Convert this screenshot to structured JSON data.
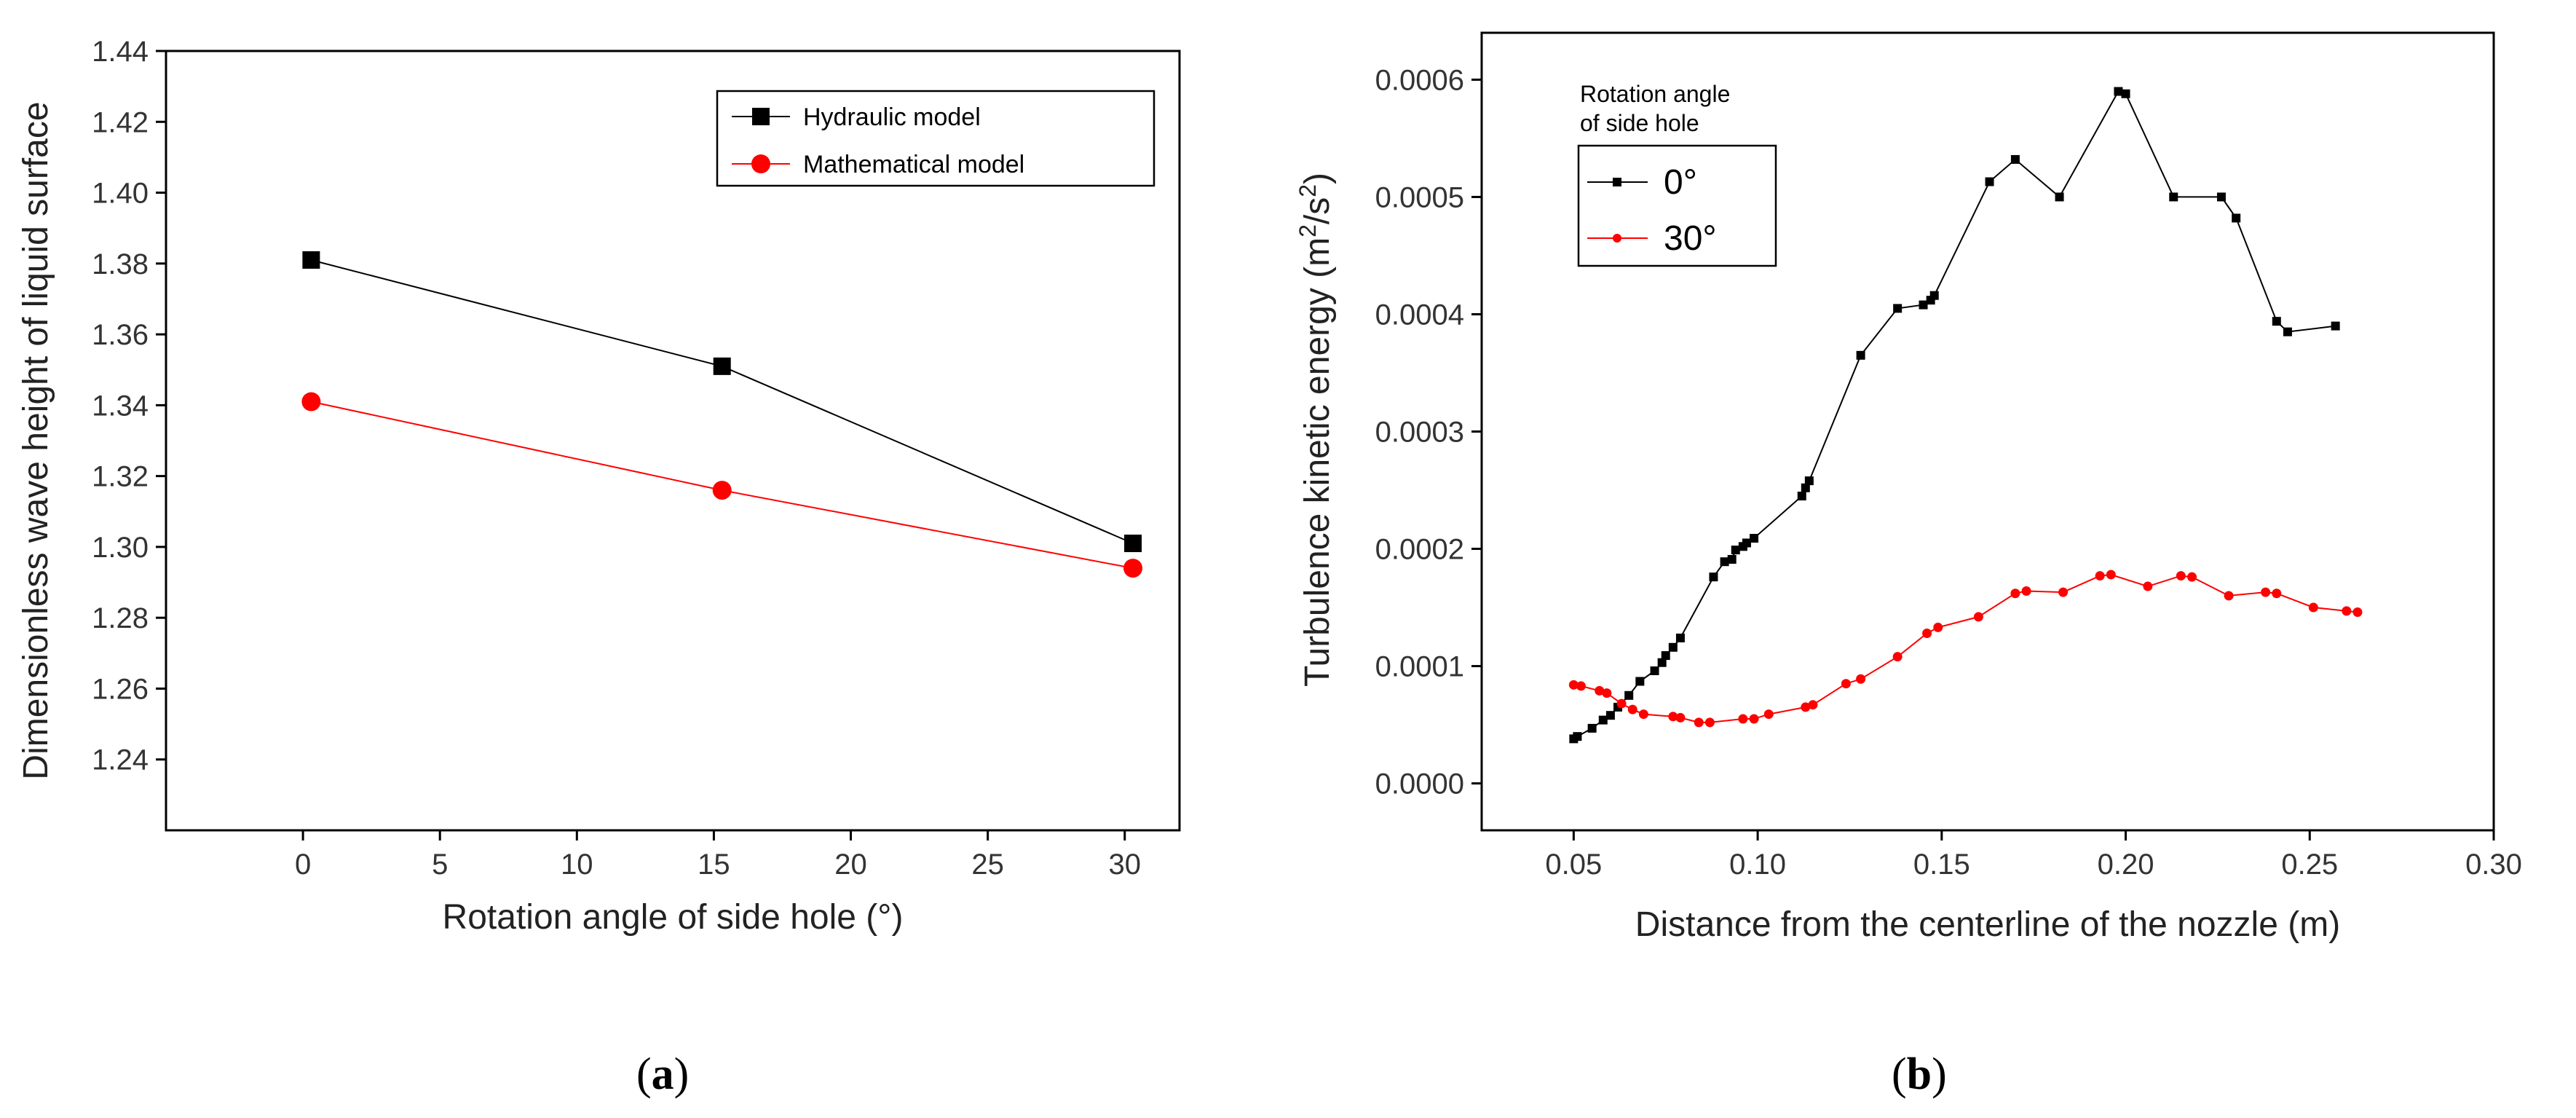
{
  "chart_data": [
    {
      "type": "line",
      "panel_label_open": "(",
      "panel_label_letter": "a",
      "panel_label_close": ")",
      "xlabel": "Rotation angle of side hole (°)",
      "ylabel": "Dimensionless wave height of liquid surface",
      "xlim": [
        -5,
        32
      ],
      "ylim": [
        1.22,
        1.44
      ],
      "xticks": [
        0,
        5,
        10,
        15,
        20,
        25,
        30
      ],
      "yticks": [
        1.24,
        1.26,
        1.28,
        1.3,
        1.32,
        1.34,
        1.36,
        1.38,
        1.4,
        1.42,
        1.44
      ],
      "xtick_labels": [
        "0",
        "5",
        "10",
        "15",
        "20",
        "25",
        "30"
      ],
      "ytick_labels": [
        "1.24",
        "1.26",
        "1.28",
        "1.30",
        "1.32",
        "1.34",
        "1.36",
        "1.38",
        "1.40",
        "1.42",
        "1.44"
      ],
      "legend_position": "top-right",
      "series": [
        {
          "name": "Hydraulic model",
          "color": "#000000",
          "marker": "square",
          "x": [
            0.3,
            15.3,
            30.3
          ],
          "y": [
            1.381,
            1.351,
            1.301
          ]
        },
        {
          "name": "Mathematical model",
          "color": "#ff0000",
          "marker": "circle",
          "x": [
            0.3,
            15.3,
            30.3
          ],
          "y": [
            1.341,
            1.316,
            1.294
          ]
        }
      ]
    },
    {
      "type": "line",
      "panel_label_open": "(",
      "panel_label_letter": "b",
      "panel_label_close": ")",
      "xlabel": "Distance from the centerline of the nozzle (m)",
      "ylabel_main": "Turbulence kinetic energy (m",
      "ylabel_sup1": "2",
      "ylabel_mid": "/s",
      "ylabel_sup2": "2",
      "ylabel_end": ")",
      "xlim": [
        0.025,
        0.3
      ],
      "ylim": [
        -4e-05,
        0.00064
      ],
      "xticks": [
        0.05,
        0.1,
        0.15,
        0.2,
        0.25,
        0.3
      ],
      "yticks": [
        0.0,
        0.0001,
        0.0002,
        0.0003,
        0.0004,
        0.0005,
        0.0006
      ],
      "xtick_labels": [
        "0.05",
        "0.10",
        "0.15",
        "0.20",
        "0.25",
        "0.30"
      ],
      "ytick_labels": [
        "0.0000",
        "0.0001",
        "0.0002",
        "0.0003",
        "0.0004",
        "0.0005",
        "0.0006"
      ],
      "legend_title_line1": "Rotation angle",
      "legend_title_line2": "of side hole",
      "legend_position": "top-left",
      "series": [
        {
          "name": "0°",
          "color": "#000000",
          "marker": "small-square",
          "x": [
            0.05,
            0.051,
            0.055,
            0.058,
            0.06,
            0.062,
            0.065,
            0.068,
            0.072,
            0.074,
            0.075,
            0.077,
            0.079,
            0.088,
            0.091,
            0.093,
            0.094,
            0.096,
            0.097,
            0.099,
            0.112,
            0.113,
            0.114,
            0.128,
            0.138,
            0.145,
            0.147,
            0.148,
            0.163,
            0.17,
            0.182,
            0.198,
            0.2,
            0.213,
            0.226,
            0.23,
            0.241,
            0.244,
            0.257
          ],
          "y": [
            3.8e-05,
            4e-05,
            4.7e-05,
            5.4e-05,
            5.8e-05,
            6.5e-05,
            7.5e-05,
            8.7e-05,
            9.6e-05,
            0.000103,
            0.000109,
            0.000116,
            0.000124,
            0.000176,
            0.000189,
            0.000191,
            0.000199,
            0.000202,
            0.000205,
            0.000209,
            0.000245,
            0.000252,
            0.000258,
            0.000365,
            0.000405,
            0.000408,
            0.000412,
            0.000416,
            0.000513,
            0.000532,
            0.0005,
            0.00059,
            0.000588,
            0.0005,
            0.0005,
            0.000482,
            0.000394,
            0.000385,
            0.00039
          ]
        },
        {
          "name": "30°",
          "color": "#ff0000",
          "marker": "small-circle",
          "x": [
            0.05,
            0.052,
            0.057,
            0.059,
            0.063,
            0.066,
            0.069,
            0.077,
            0.079,
            0.084,
            0.087,
            0.096,
            0.099,
            0.103,
            0.113,
            0.115,
            0.124,
            0.128,
            0.138,
            0.146,
            0.149,
            0.16,
            0.17,
            0.173,
            0.183,
            0.193,
            0.196,
            0.206,
            0.215,
            0.218,
            0.228,
            0.238,
            0.241,
            0.251,
            0.26,
            0.263
          ],
          "y": [
            8.4e-05,
            8.3e-05,
            7.9e-05,
            7.7e-05,
            6.8e-05,
            6.3e-05,
            5.9e-05,
            5.7e-05,
            5.6e-05,
            5.2e-05,
            5.2e-05,
            5.5e-05,
            5.5e-05,
            5.9e-05,
            6.5e-05,
            6.7e-05,
            8.5e-05,
            8.9e-05,
            0.000108,
            0.000128,
            0.000133,
            0.000142,
            0.000162,
            0.000164,
            0.000163,
            0.000177,
            0.000178,
            0.000168,
            0.000177,
            0.000176,
            0.00016,
            0.000163,
            0.000162,
            0.00015,
            0.000147,
            0.000146
          ]
        }
      ]
    }
  ]
}
